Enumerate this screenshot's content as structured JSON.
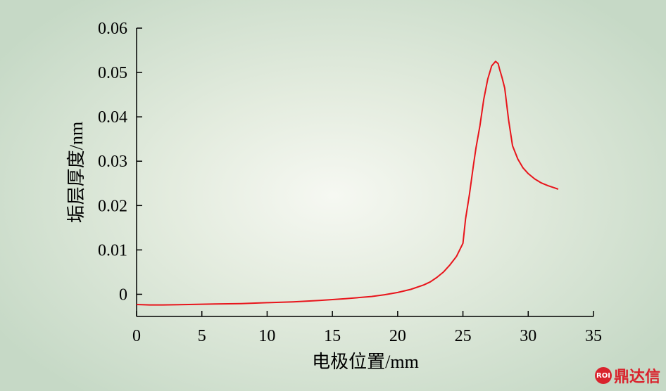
{
  "chart_data": {
    "type": "line",
    "xlabel": "电极位置/mm",
    "ylabel": "垢层厚度/nm",
    "xlim": [
      0,
      35
    ],
    "ylim": [
      -0.005,
      0.06
    ],
    "xticks": [
      0,
      5,
      10,
      15,
      20,
      25,
      30,
      35
    ],
    "yticks": [
      0,
      0.01,
      0.02,
      0.03,
      0.04,
      0.05,
      0.06
    ],
    "xtick_labels": [
      "0",
      "5",
      "10",
      "15",
      "20",
      "25",
      "30",
      "35"
    ],
    "ytick_labels": [
      "0",
      "0.01",
      "0.02",
      "0.03",
      "0.04",
      "0.05",
      "0.06"
    ],
    "grid": false,
    "series": [
      {
        "color": "#e8141b",
        "x": [
          0,
          1,
          2,
          4,
          6,
          8,
          10,
          12,
          14,
          16,
          18,
          19,
          20,
          21,
          22,
          22.5,
          23,
          23.5,
          24,
          24.5,
          25,
          25.2,
          25.5,
          25.8,
          26,
          26.3,
          26.6,
          26.9,
          27.2,
          27.5,
          27.7,
          27.8,
          28,
          28.2,
          28.5,
          28.8,
          29.2,
          29.6,
          30,
          30.5,
          31,
          31.5,
          32,
          32.3
        ],
        "y": [
          -0.0023,
          -0.0024,
          -0.0024,
          -0.0023,
          -0.0022,
          -0.0021,
          -0.0019,
          -0.0017,
          -0.0014,
          -0.001,
          -0.0005,
          -0.0001,
          0.0004,
          0.0011,
          0.0021,
          0.0028,
          0.0038,
          0.005,
          0.0066,
          0.0085,
          0.0115,
          0.017,
          0.0225,
          0.029,
          0.033,
          0.038,
          0.044,
          0.0485,
          0.0515,
          0.0525,
          0.052,
          0.0508,
          0.0488,
          0.0465,
          0.0392,
          0.0335,
          0.0305,
          0.0285,
          0.0272,
          0.026,
          0.0251,
          0.0245,
          0.024,
          0.0237
        ]
      }
    ]
  },
  "watermark": {
    "logo_text": "ROI",
    "text": "鼎达信"
  }
}
